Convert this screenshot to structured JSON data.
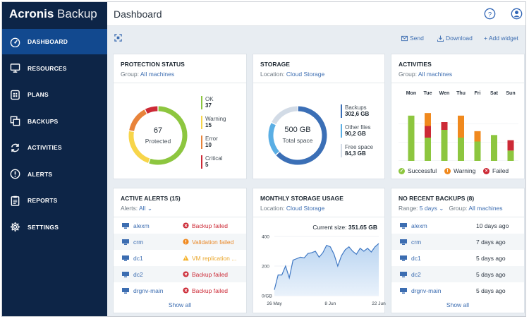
{
  "app": {
    "brand_bold": "Acronis",
    "brand_light": " Backup"
  },
  "topbar": {
    "title": "Dashboard"
  },
  "sidebar": {
    "items": [
      {
        "label": "DASHBOARD",
        "icon": "dashboard-icon",
        "active": true
      },
      {
        "label": "RESOURCES",
        "icon": "monitor-icon"
      },
      {
        "label": "PLANS",
        "icon": "plans-icon"
      },
      {
        "label": "BACKUPS",
        "icon": "backups-icon"
      },
      {
        "label": "ACTIVITIES",
        "icon": "activities-icon"
      },
      {
        "label": "ALERTS",
        "icon": "alert-icon"
      },
      {
        "label": "REPORTS",
        "icon": "reports-icon"
      },
      {
        "label": "SETTINGS",
        "icon": "gear-icon"
      }
    ]
  },
  "subbar": {
    "send": "Send",
    "download": "Download",
    "add_widget": "+ Add widget"
  },
  "colors": {
    "ok": "#8dc63f",
    "warning": "#f7d54a",
    "error": "#e8833a",
    "critical": "#cc2a36",
    "accent": "#3c6db1",
    "sidebar": "#0d2547",
    "sidebar_active": "#12498f"
  },
  "protection": {
    "title": "PROTECTION STATUS",
    "group_label": "Group:",
    "group_value": "All machines",
    "center_value": "67",
    "center_label": "Protected",
    "legend": [
      {
        "label": "OK",
        "value": "37",
        "color": "#8dc63f"
      },
      {
        "label": "Warning",
        "value": "15",
        "color": "#f7d54a"
      },
      {
        "label": "Error",
        "value": "10",
        "color": "#e8833a"
      },
      {
        "label": "Critical",
        "value": "5",
        "color": "#cc2a36"
      }
    ]
  },
  "storage": {
    "title": "STORAGE",
    "location_label": "Location:",
    "location_value": "Cloud Storage",
    "center_value": "500 GB",
    "center_label": "Total space",
    "legend": [
      {
        "label": "Backups",
        "value": "302,6 GB",
        "color": "#3b6fb6"
      },
      {
        "label": "Other files",
        "value": "90,2 GB",
        "color": "#5aaee4"
      },
      {
        "label": "Free space",
        "value": "84,3 GB",
        "color": "#d2dbe6"
      }
    ]
  },
  "activities": {
    "title": "ACTIVITIES",
    "group_label": "Group:",
    "group_value": "All machines",
    "legend": {
      "successful": "Successful",
      "warning": "Warning",
      "failed": "Failed"
    }
  },
  "alerts": {
    "title": "ACTIVE ALERTS (15)",
    "filter_label": "Alerts:",
    "filter_value": "All",
    "rows": [
      {
        "name": "alexm",
        "status": "Backup failed",
        "kind": "error"
      },
      {
        "name": "crm",
        "status": "Validation failed",
        "kind": "warning"
      },
      {
        "name": "dc1",
        "status": "VM replication ...",
        "kind": "caution"
      },
      {
        "name": "dc2",
        "status": "Backup failed",
        "kind": "error"
      },
      {
        "name": "drgnv-main",
        "status": "Backup failed",
        "kind": "error"
      }
    ],
    "show_all": "Show all"
  },
  "monthly": {
    "title": "MONTHLY STORAGE USAGE",
    "location_label": "Location:",
    "location_value": "Cloud Storage",
    "current_label": "Current size:",
    "current_value": "351.65 GB"
  },
  "norecent": {
    "title": "NO RECENT BACKUPS (8)",
    "range_label": "Range:",
    "range_value": "5 days",
    "group_label": "Group:",
    "group_value": "All machines",
    "rows": [
      {
        "name": "alexm",
        "age": "10 days ago"
      },
      {
        "name": "crm",
        "age": "7 days ago"
      },
      {
        "name": "dc1",
        "age": "5 days ago"
      },
      {
        "name": "dc2",
        "age": "5 days ago"
      },
      {
        "name": "drgnv-main",
        "age": "5 days ago"
      }
    ],
    "show_all": "Show all"
  },
  "chart_data": [
    {
      "type": "bar",
      "title": "ACTIVITIES",
      "stacked": true,
      "categories": [
        "Mon",
        "Tue",
        "Wen",
        "Thu",
        "Fri",
        "Sat",
        "Sun"
      ],
      "ylim": [
        0,
        42
      ],
      "series": [
        {
          "name": "Successful",
          "color": "#8dc63f",
          "values": [
            35,
            18,
            24,
            18,
            15,
            20,
            8
          ]
        },
        {
          "name": "Failed",
          "color": "#cc2a36",
          "values": [
            0,
            9,
            6,
            0,
            0,
            0,
            8
          ]
        },
        {
          "name": "Warning",
          "color": "#f0891e",
          "values": [
            0,
            10,
            0,
            17,
            8,
            0,
            0
          ]
        }
      ]
    },
    {
      "type": "area",
      "title": "MONTHLY STORAGE USAGE",
      "x": [
        "26 May",
        "",
        "",
        "",
        "",
        "",
        "",
        "",
        "",
        "",
        "",
        "",
        "",
        "",
        "",
        "8 Jun",
        "",
        "",
        "",
        "",
        "",
        "",
        "",
        "",
        "",
        "",
        "",
        "",
        "22 Jun"
      ],
      "xticks": [
        "26 May",
        "8 Jun",
        "22 Jun"
      ],
      "yticks": [
        "400",
        "200",
        "0/GB"
      ],
      "ylim": [
        0,
        400
      ],
      "values": [
        40,
        140,
        140,
        200,
        120,
        240,
        250,
        260,
        255,
        285,
        290,
        300,
        260,
        290,
        340,
        330,
        280,
        200,
        270,
        310,
        330,
        300,
        280,
        320,
        300,
        320,
        295,
        330,
        352
      ]
    }
  ]
}
